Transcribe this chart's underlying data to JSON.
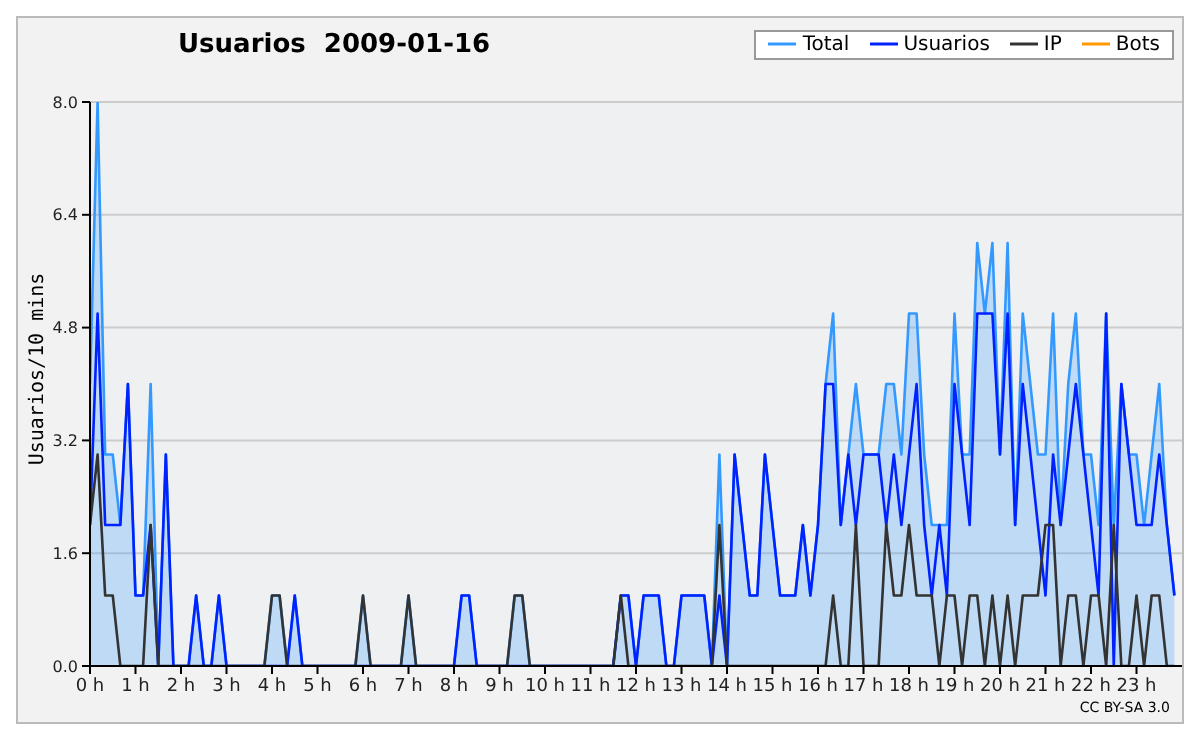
{
  "chart_data": {
    "type": "line",
    "title": "Usuarios  2009-01-16",
    "ylabel": "Usuarios/10 mins",
    "annotations": [
      "CC BY-SA 3.0"
    ],
    "x": [
      0,
      0.167,
      0.333,
      0.5,
      0.667,
      0.833,
      1,
      1.167,
      1.333,
      1.5,
      1.667,
      1.833,
      2,
      2.167,
      2.333,
      2.5,
      2.667,
      2.833,
      3,
      3.167,
      3.333,
      3.5,
      3.667,
      3.833,
      4,
      4.167,
      4.333,
      4.5,
      4.667,
      4.833,
      5,
      5.167,
      5.333,
      5.5,
      5.667,
      5.833,
      6,
      6.167,
      6.333,
      6.5,
      6.667,
      6.833,
      7,
      7.167,
      7.333,
      7.5,
      7.667,
      7.833,
      8,
      8.167,
      8.333,
      8.5,
      8.667,
      8.833,
      9,
      9.167,
      9.333,
      9.5,
      9.667,
      9.833,
      10,
      10.167,
      10.333,
      10.5,
      10.667,
      10.833,
      11,
      11.167,
      11.333,
      11.5,
      11.667,
      11.833,
      12,
      12.167,
      12.333,
      12.5,
      12.667,
      12.833,
      13,
      13.167,
      13.333,
      13.5,
      13.667,
      13.833,
      14,
      14.167,
      14.333,
      14.5,
      14.667,
      14.833,
      15,
      15.167,
      15.333,
      15.5,
      15.667,
      15.833,
      16,
      16.167,
      16.333,
      16.5,
      16.667,
      16.833,
      17,
      17.167,
      17.333,
      17.5,
      17.667,
      17.833,
      18,
      18.167,
      18.333,
      18.5,
      18.667,
      18.833,
      19,
      19.167,
      19.333,
      19.5,
      19.667,
      19.833,
      20,
      20.167,
      20.333,
      20.5,
      20.667,
      20.833,
      21,
      21.167,
      21.333,
      21.5,
      21.667,
      21.833,
      22,
      22.167,
      22.333,
      22.5,
      22.667,
      22.833,
      23,
      23.167,
      23.333,
      23.5,
      23.667,
      23.833
    ],
    "series": [
      {
        "name": "Total",
        "type": "area",
        "color": "#3399ff",
        "values": [
          4,
          8,
          3,
          3,
          2,
          4,
          1,
          1,
          4,
          0,
          3,
          0,
          0,
          0,
          1,
          0,
          0,
          1,
          0,
          0,
          0,
          0,
          0,
          0,
          1,
          1,
          0,
          1,
          0,
          0,
          0,
          0,
          0,
          0,
          0,
          0,
          1,
          0,
          0,
          0,
          0,
          0,
          1,
          0,
          0,
          0,
          0,
          0,
          0,
          1,
          1,
          0,
          0,
          0,
          0,
          0,
          1,
          1,
          0,
          0,
          0,
          0,
          0,
          0,
          0,
          0,
          0,
          0,
          0,
          0,
          1,
          1,
          0,
          1,
          1,
          1,
          0,
          0,
          1,
          1,
          1,
          1,
          0,
          3,
          0,
          3,
          2,
          1,
          1,
          3,
          2,
          1,
          1,
          1,
          2,
          1,
          2,
          4,
          5,
          2,
          3,
          4,
          3,
          3,
          3,
          4,
          4,
          3,
          5,
          5,
          3,
          2,
          2,
          2,
          5,
          3,
          3,
          6,
          5,
          6,
          3,
          6,
          2,
          5,
          4,
          3,
          3,
          5,
          2,
          4,
          5,
          3,
          3,
          2,
          5,
          2,
          4,
          3,
          3,
          2,
          3,
          4,
          2,
          1
        ]
      },
      {
        "name": "Usuarios",
        "color": "#0022ff",
        "values": [
          2,
          5,
          2,
          2,
          2,
          4,
          1,
          1,
          2,
          0,
          3,
          0,
          0,
          0,
          1,
          0,
          0,
          1,
          0,
          0,
          0,
          0,
          0,
          0,
          0,
          0,
          0,
          1,
          0,
          0,
          0,
          0,
          0,
          0,
          0,
          0,
          0,
          0,
          0,
          0,
          0,
          0,
          0,
          0,
          0,
          0,
          0,
          0,
          0,
          1,
          1,
          0,
          0,
          0,
          0,
          0,
          0,
          0,
          0,
          0,
          0,
          0,
          0,
          0,
          0,
          0,
          0,
          0,
          0,
          0,
          1,
          1,
          0,
          1,
          1,
          1,
          0,
          0,
          1,
          1,
          1,
          1,
          0,
          1,
          0,
          3,
          2,
          1,
          1,
          3,
          2,
          1,
          1,
          1,
          2,
          1,
          2,
          4,
          4,
          2,
          3,
          2,
          3,
          3,
          3,
          2,
          3,
          2,
          3,
          4,
          2,
          1,
          2,
          1,
          4,
          3,
          2,
          5,
          5,
          5,
          3,
          5,
          2,
          4,
          3,
          2,
          1,
          3,
          2,
          3,
          4,
          3,
          2,
          1,
          5,
          0,
          4,
          3,
          2,
          2,
          2,
          3,
          2,
          1
        ]
      },
      {
        "name": "IP",
        "color": "#333333",
        "values": [
          2,
          3,
          1,
          1,
          0,
          0,
          0,
          0,
          2,
          0,
          0,
          0,
          0,
          0,
          0,
          0,
          0,
          0,
          0,
          0,
          0,
          0,
          0,
          0,
          1,
          1,
          0,
          0,
          0,
          0,
          0,
          0,
          0,
          0,
          0,
          0,
          1,
          0,
          0,
          0,
          0,
          0,
          1,
          0,
          0,
          0,
          0,
          0,
          0,
          0,
          0,
          0,
          0,
          0,
          0,
          0,
          1,
          1,
          0,
          0,
          0,
          0,
          0,
          0,
          0,
          0,
          0,
          0,
          0,
          0,
          1,
          0,
          0,
          0,
          0,
          0,
          0,
          0,
          0,
          0,
          0,
          0,
          0,
          2,
          0,
          0,
          0,
          0,
          0,
          0,
          0,
          0,
          0,
          0,
          0,
          0,
          0,
          0,
          1,
          0,
          0,
          2,
          0,
          0,
          0,
          2,
          1,
          1,
          2,
          1,
          1,
          1,
          0,
          1,
          1,
          0,
          1,
          1,
          0,
          1,
          0,
          1,
          0,
          1,
          1,
          1,
          2,
          2,
          0,
          1,
          1,
          0,
          1,
          1,
          0,
          2,
          0,
          0,
          1,
          0,
          1,
          1,
          0,
          0
        ]
      },
      {
        "name": "Bots",
        "color": "#ff9900",
        "values": [
          null,
          null,
          null,
          null,
          null,
          null,
          null,
          null,
          null,
          null,
          null,
          null,
          null,
          null,
          null,
          null,
          null,
          null,
          null,
          null,
          null,
          null,
          null,
          null,
          null,
          null,
          null,
          null,
          null,
          null,
          null,
          null,
          null,
          null,
          null,
          null,
          null,
          null,
          null,
          null,
          null,
          null,
          null,
          null,
          null,
          null,
          null,
          null,
          null,
          null,
          null,
          null,
          null,
          null,
          null,
          null,
          null,
          null,
          null,
          null,
          null,
          null,
          null,
          null,
          null,
          null,
          null,
          null,
          null,
          null,
          null,
          null,
          null,
          null,
          null,
          null,
          null,
          null,
          null,
          null,
          null,
          null,
          null,
          null,
          null,
          null,
          null,
          null,
          null,
          null,
          null,
          null,
          null,
          null,
          null,
          null,
          null,
          null,
          null,
          null,
          null,
          null,
          null,
          null,
          null,
          null,
          null,
          null,
          null,
          null,
          null,
          null,
          null,
          null,
          null,
          null,
          null,
          null,
          null,
          null,
          null,
          null,
          null,
          null,
          null,
          null,
          null,
          null,
          null,
          null,
          null,
          null,
          null,
          null,
          null,
          null,
          null,
          null,
          null,
          null,
          null,
          null,
          null,
          null
        ]
      }
    ],
    "xlim": [
      0,
      24
    ],
    "xticks": [
      {
        "value": 0,
        "label": "0 h"
      },
      {
        "value": 1,
        "label": "1 h"
      },
      {
        "value": 2,
        "label": "2 h"
      },
      {
        "value": 3,
        "label": "3 h"
      },
      {
        "value": 4,
        "label": "4 h"
      },
      {
        "value": 5,
        "label": "5 h"
      },
      {
        "value": 6,
        "label": "6 h"
      },
      {
        "value": 7,
        "label": "7 h"
      },
      {
        "value": 8,
        "label": "8 h"
      },
      {
        "value": 9,
        "label": "9 h"
      },
      {
        "value": 10,
        "label": "10 h"
      },
      {
        "value": 11,
        "label": "11 h"
      },
      {
        "value": 12,
        "label": "12 h"
      },
      {
        "value": 13,
        "label": "13 h"
      },
      {
        "value": 14,
        "label": "14 h"
      },
      {
        "value": 15,
        "label": "15 h"
      },
      {
        "value": 16,
        "label": "16 h"
      },
      {
        "value": 17,
        "label": "17 h"
      },
      {
        "value": 18,
        "label": "18 h"
      },
      {
        "value": 19,
        "label": "19 h"
      },
      {
        "value": 20,
        "label": "20 h"
      },
      {
        "value": 21,
        "label": "21 h"
      },
      {
        "value": 22,
        "label": "22 h"
      },
      {
        "value": 23,
        "label": "23 h"
      }
    ],
    "ylim": [
      0,
      8
    ],
    "yticks": [
      {
        "value": 0,
        "label": "0.0"
      },
      {
        "value": 1.6,
        "label": "1.6"
      },
      {
        "value": 3.2,
        "label": "3.2"
      },
      {
        "value": 4.8,
        "label": "4.8"
      },
      {
        "value": 6.4,
        "label": "6.4"
      },
      {
        "value": 8,
        "label": "8.0"
      }
    ],
    "grid": "y",
    "legend": "top right",
    "marker": "none",
    "line_style": "solid"
  }
}
